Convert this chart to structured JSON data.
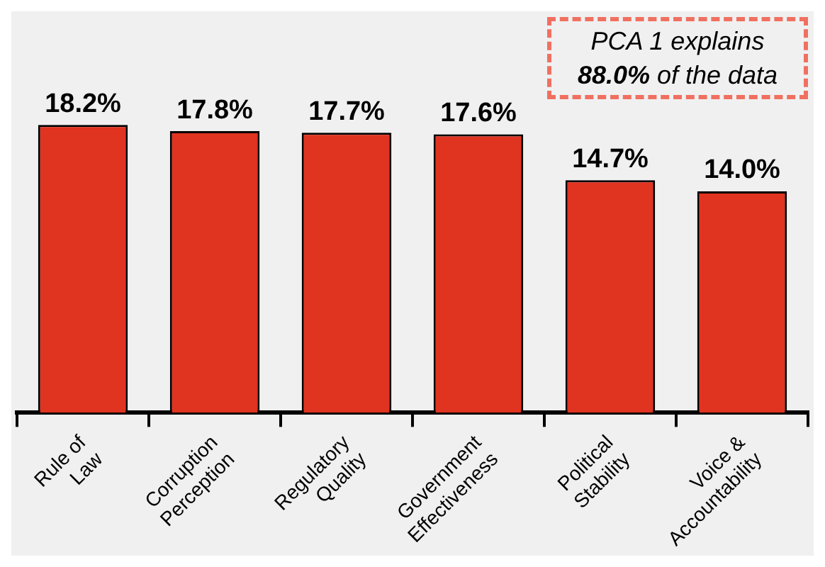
{
  "chart_data": {
    "type": "bar",
    "categories": [
      "Rule of Law",
      "Corruption Perception",
      "Regulatory Quality",
      "Government Effectiveness",
      "Political Stability",
      "Voice & Accountability"
    ],
    "values": [
      18.2,
      17.8,
      17.7,
      17.6,
      14.7,
      14.0
    ],
    "value_labels": [
      "18.2%",
      "17.8%",
      "17.7%",
      "17.6%",
      "14.7%",
      "14.0%"
    ],
    "color": "#e03320",
    "annotations": [
      "PCA 1 explains 88.0% of the data"
    ],
    "grid": false,
    "legend": false
  }
}
